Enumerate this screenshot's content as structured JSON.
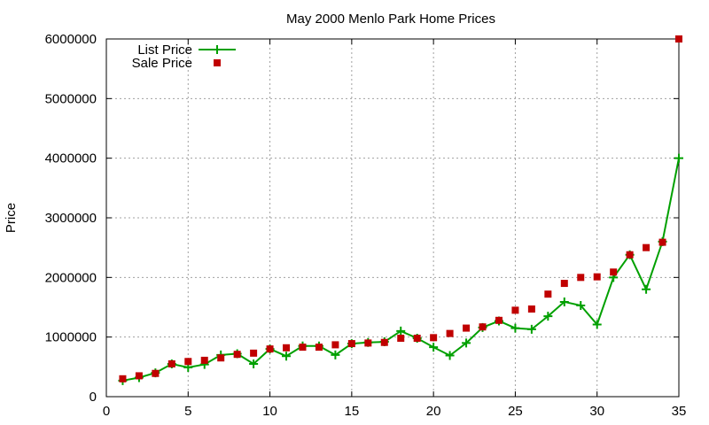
{
  "chart_data": {
    "type": "line",
    "title": "May 2000 Menlo Park Home Prices",
    "xlabel": "",
    "ylabel": "Price",
    "xlim": [
      0,
      35
    ],
    "ylim": [
      0,
      6000000
    ],
    "x_ticks": [
      0,
      5,
      10,
      15,
      20,
      25,
      30,
      35
    ],
    "y_ticks": [
      0,
      1000000,
      2000000,
      3000000,
      4000000,
      5000000,
      6000000
    ],
    "grid": true,
    "legend_position": "top-left",
    "series": [
      {
        "name": "List Price",
        "style": "line+cross",
        "color": "#00a000",
        "x": [
          1,
          2,
          3,
          4,
          5,
          6,
          7,
          8,
          9,
          10,
          11,
          12,
          13,
          14,
          15,
          16,
          17,
          18,
          19,
          20,
          21,
          22,
          23,
          24,
          25,
          26,
          27,
          28,
          29,
          30,
          31,
          32,
          33,
          34,
          35
        ],
        "y": [
          270000,
          320000,
          400000,
          550000,
          490000,
          540000,
          700000,
          720000,
          550000,
          800000,
          680000,
          850000,
          850000,
          700000,
          890000,
          910000,
          920000,
          1100000,
          980000,
          830000,
          690000,
          900000,
          1160000,
          1270000,
          1150000,
          1130000,
          1350000,
          1590000,
          1530000,
          1210000,
          2000000,
          2380000,
          1800000,
          2600000,
          4000000
        ]
      },
      {
        "name": "Sale Price",
        "style": "square",
        "color": "#c00000",
        "x": [
          1,
          2,
          3,
          4,
          5,
          6,
          7,
          8,
          9,
          10,
          11,
          12,
          13,
          14,
          15,
          16,
          17,
          18,
          19,
          20,
          21,
          22,
          23,
          24,
          25,
          26,
          27,
          28,
          29,
          30,
          31,
          32,
          33,
          34,
          35
        ],
        "y": [
          300000,
          350000,
          390000,
          550000,
          590000,
          610000,
          650000,
          710000,
          730000,
          800000,
          820000,
          830000,
          830000,
          870000,
          890000,
          900000,
          910000,
          980000,
          980000,
          990000,
          1060000,
          1150000,
          1170000,
          1280000,
          1450000,
          1470000,
          1720000,
          1900000,
          2000000,
          2010000,
          2090000,
          2380000,
          2500000,
          2590000,
          6000000
        ]
      }
    ]
  }
}
